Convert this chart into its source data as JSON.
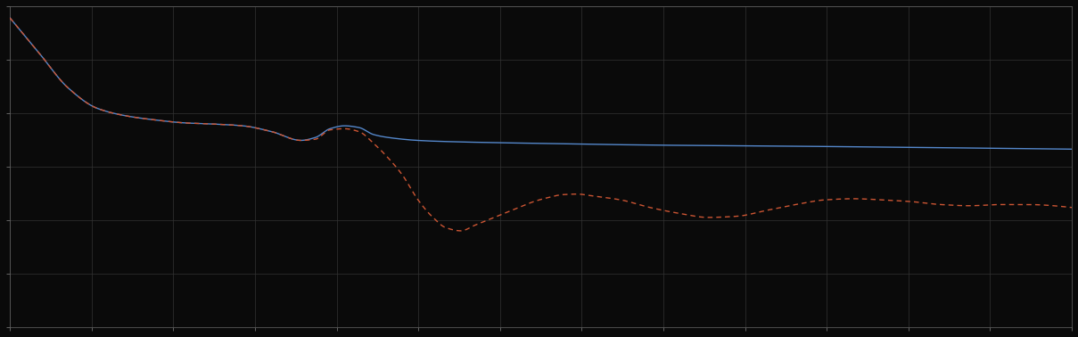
{
  "background_color": "#0a0a0a",
  "axes_bg_color": "#0a0a0a",
  "grid_color": "#333333",
  "blue_color": "#5588cc",
  "red_color": "#cc5533",
  "xlim": [
    0,
    365
  ],
  "ylim": [
    0,
    5.5
  ],
  "figsize": [
    12.09,
    3.78
  ],
  "dpi": 100,
  "blue_points": [
    [
      0,
      5.3
    ],
    [
      10,
      4.7
    ],
    [
      20,
      4.1
    ],
    [
      30,
      3.75
    ],
    [
      40,
      3.62
    ],
    [
      50,
      3.55
    ],
    [
      60,
      3.5
    ],
    [
      70,
      3.48
    ],
    [
      80,
      3.45
    ],
    [
      90,
      3.35
    ],
    [
      100,
      3.2
    ],
    [
      105,
      3.25
    ],
    [
      110,
      3.4
    ],
    [
      115,
      3.45
    ],
    [
      120,
      3.42
    ],
    [
      125,
      3.3
    ],
    [
      130,
      3.25
    ],
    [
      140,
      3.2
    ],
    [
      150,
      3.18
    ],
    [
      180,
      3.15
    ],
    [
      220,
      3.12
    ],
    [
      270,
      3.1
    ],
    [
      310,
      3.08
    ],
    [
      365,
      3.05
    ]
  ],
  "red_points": [
    [
      0,
      5.3
    ],
    [
      10,
      4.7
    ],
    [
      20,
      4.1
    ],
    [
      30,
      3.75
    ],
    [
      40,
      3.62
    ],
    [
      50,
      3.55
    ],
    [
      60,
      3.5
    ],
    [
      70,
      3.48
    ],
    [
      80,
      3.45
    ],
    [
      90,
      3.35
    ],
    [
      100,
      3.2
    ],
    [
      105,
      3.22
    ],
    [
      110,
      3.38
    ],
    [
      115,
      3.4
    ],
    [
      120,
      3.35
    ],
    [
      125,
      3.15
    ],
    [
      130,
      2.9
    ],
    [
      135,
      2.6
    ],
    [
      140,
      2.2
    ],
    [
      145,
      1.9
    ],
    [
      150,
      1.7
    ],
    [
      155,
      1.65
    ],
    [
      160,
      1.75
    ],
    [
      165,
      1.85
    ],
    [
      170,
      1.95
    ],
    [
      175,
      2.05
    ],
    [
      180,
      2.15
    ],
    [
      185,
      2.22
    ],
    [
      190,
      2.27
    ],
    [
      195,
      2.28
    ],
    [
      200,
      2.25
    ],
    [
      210,
      2.18
    ],
    [
      220,
      2.05
    ],
    [
      230,
      1.95
    ],
    [
      240,
      1.88
    ],
    [
      250,
      1.9
    ],
    [
      260,
      2.0
    ],
    [
      270,
      2.1
    ],
    [
      280,
      2.18
    ],
    [
      290,
      2.2
    ],
    [
      300,
      2.18
    ],
    [
      310,
      2.15
    ],
    [
      320,
      2.1
    ],
    [
      330,
      2.08
    ],
    [
      340,
      2.1
    ],
    [
      350,
      2.1
    ],
    [
      365,
      2.05
    ]
  ],
  "xticks_n": 14,
  "yticks_n": 7
}
